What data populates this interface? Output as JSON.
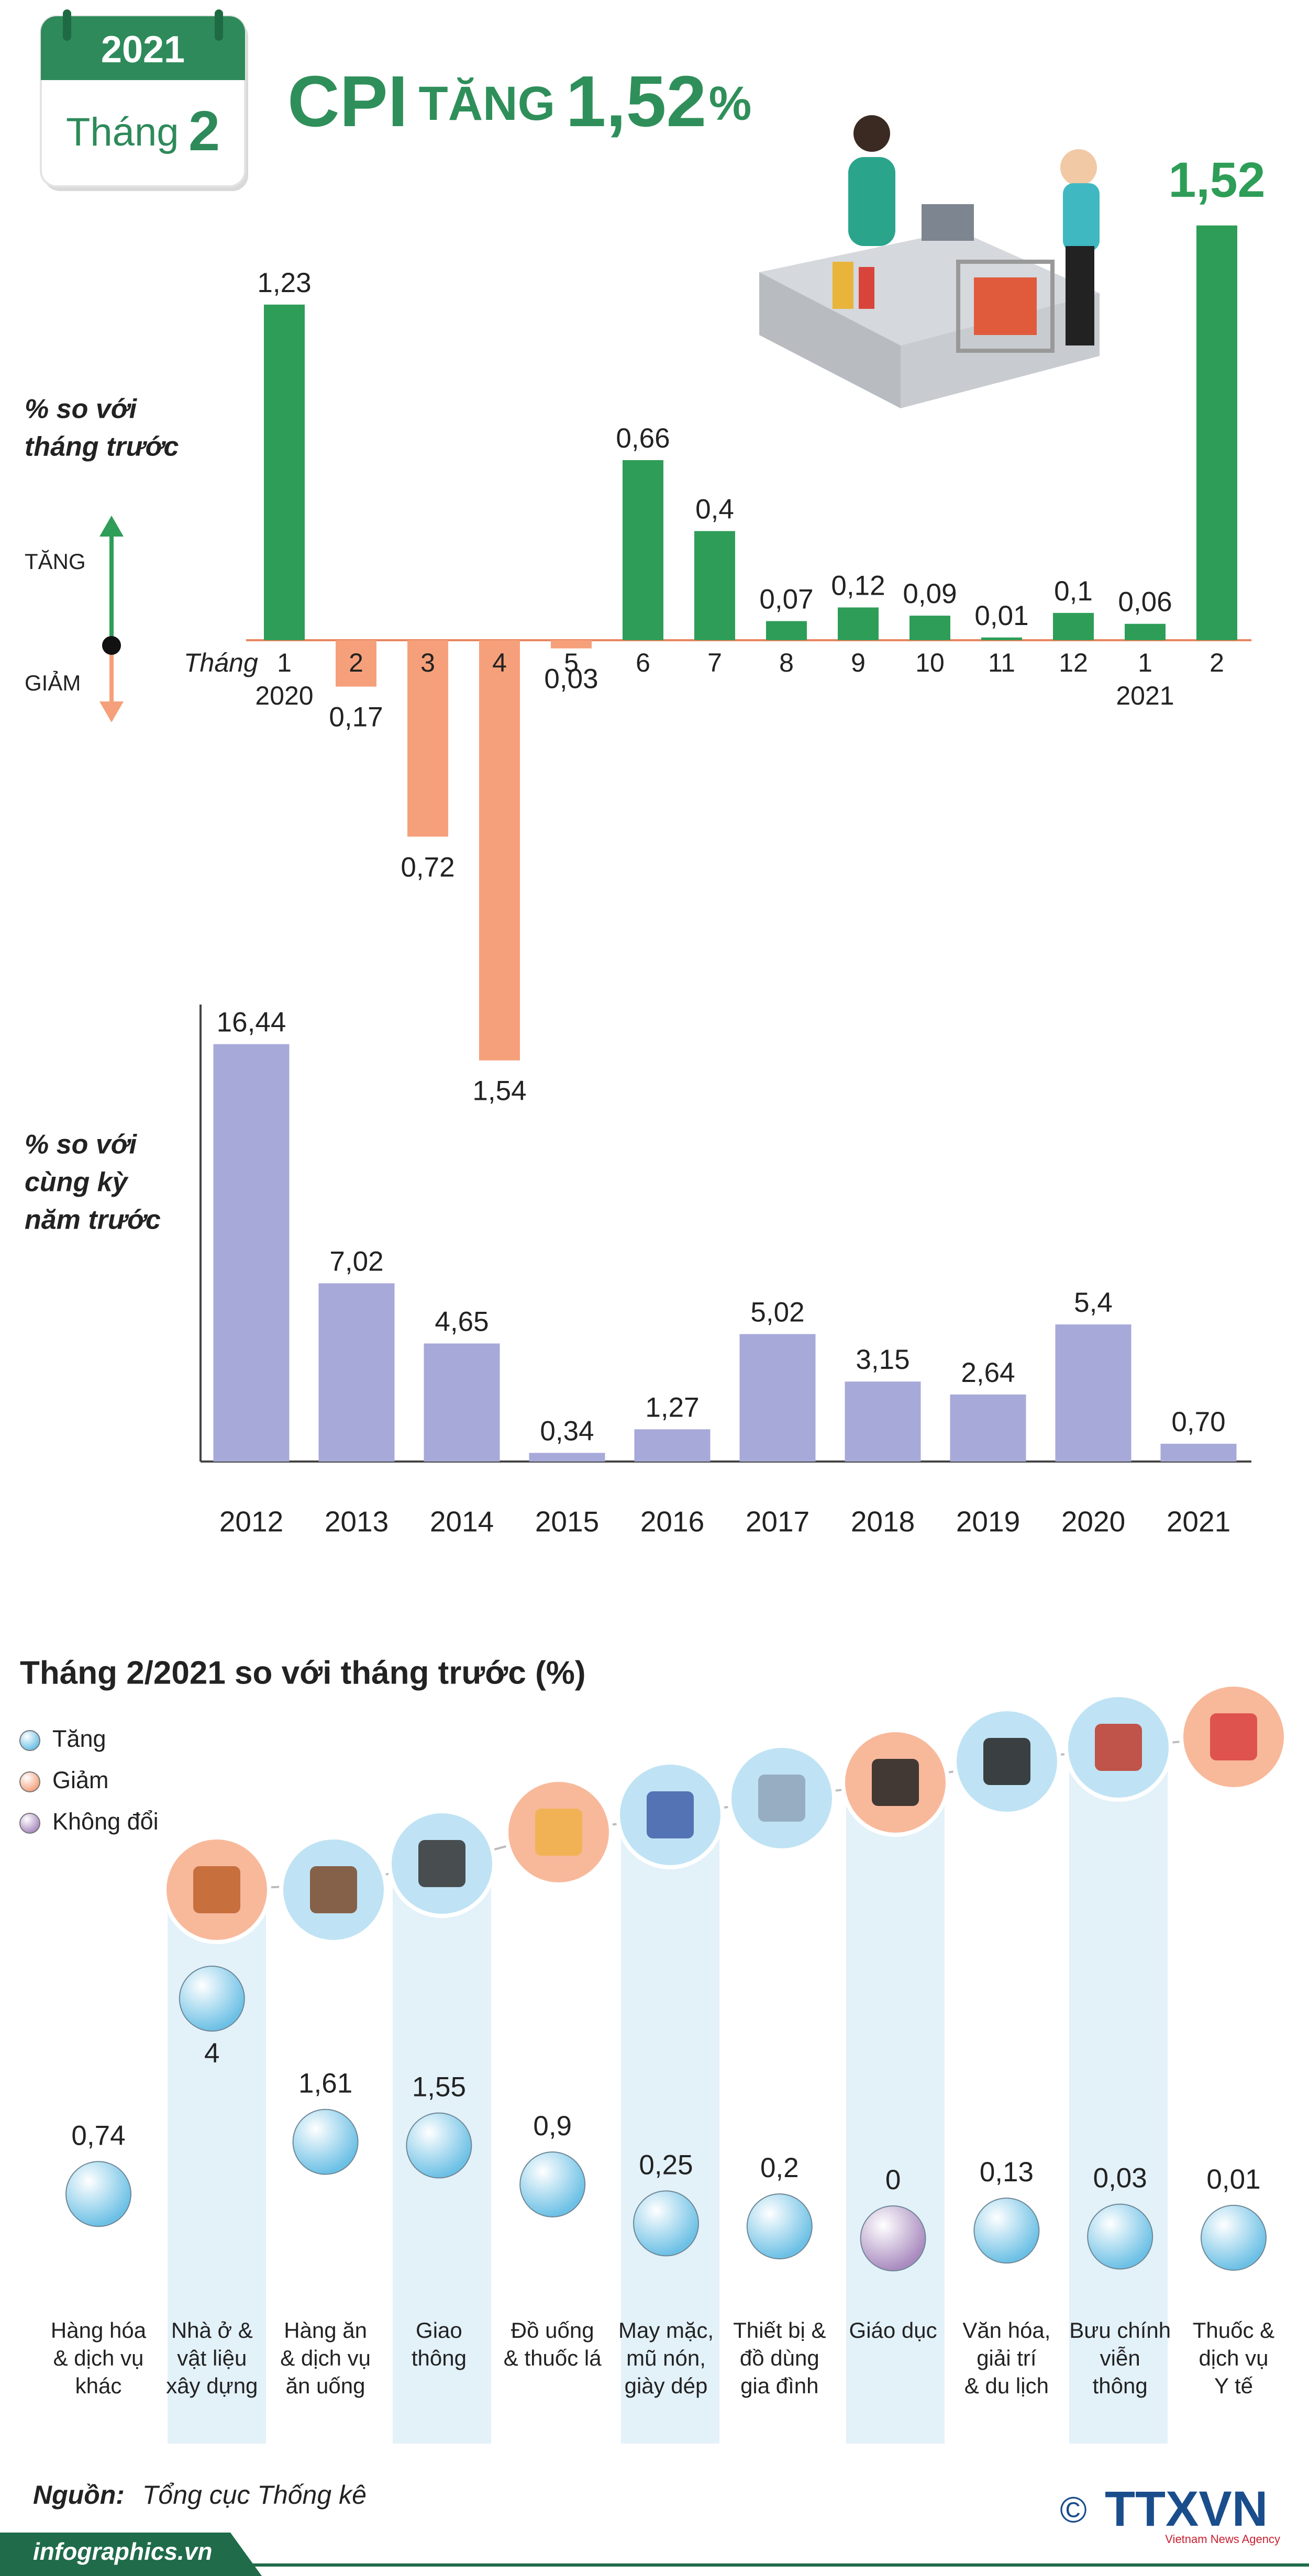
{
  "header": {
    "year": "2021",
    "month_label": "Tháng",
    "month": "2",
    "title": [
      "CPI",
      "TĂNG",
      "1,52",
      "%"
    ]
  },
  "chart_data": [
    {
      "type": "bar",
      "y_label": [
        "% so với",
        "tháng trước"
      ],
      "up_label": "TĂNG",
      "down_label": "GIẢM",
      "x_label": "Tháng",
      "categories": [
        "1",
        "2",
        "3",
        "4",
        "5",
        "6",
        "7",
        "8",
        "9",
        "10",
        "11",
        "12",
        "1",
        "2"
      ],
      "years": [
        "2020",
        null,
        null,
        null,
        null,
        null,
        null,
        null,
        null,
        null,
        null,
        null,
        "2021",
        null
      ],
      "values": [
        1.23,
        -0.17,
        -0.72,
        -1.54,
        -0.03,
        0.66,
        0.4,
        0.07,
        0.12,
        0.09,
        0.01,
        0.1,
        0.06,
        1.52
      ],
      "value_labels": [
        "1,23",
        "0,17",
        "0,72",
        "1,54",
        "0,03",
        "0,66",
        "0,4",
        "0,07",
        "0,12",
        "0,09",
        "0,01",
        "0,1",
        "0,06",
        "1,52"
      ],
      "colors": {
        "up": "#2e9d57",
        "down": "#f5a07a"
      },
      "ylim": [
        -1.6,
        1.6
      ]
    },
    {
      "type": "bar",
      "y_label": [
        "% so với",
        "cùng kỳ",
        "năm trước"
      ],
      "categories": [
        "2012",
        "2013",
        "2014",
        "2015",
        "2016",
        "2017",
        "2018",
        "2019",
        "2020",
        "2021"
      ],
      "values": [
        16.44,
        7.02,
        4.65,
        0.34,
        1.27,
        5.02,
        3.15,
        2.64,
        5.4,
        0.7
      ],
      "value_labels": [
        "16,44",
        "7,02",
        "4,65",
        "0,34",
        "1,27",
        "5,02",
        "3,15",
        "2,64",
        "5,4",
        "0,70"
      ],
      "color": "#a7a9d9",
      "ylim": [
        0,
        18
      ]
    },
    {
      "type": "bubble",
      "title": "Tháng 2/2021 so với tháng trước (%)",
      "legend": [
        {
          "name": "Tăng",
          "color": "#6cc0e5"
        },
        {
          "name": "Giảm",
          "color": "#f4a27e"
        },
        {
          "name": "Không đổi",
          "color": "#a98bbf"
        }
      ],
      "categories": [
        [
          "Hàng hóa",
          "& dịch vụ",
          "khác"
        ],
        [
          "Nhà ở &",
          "vật liệu",
          "xây dựng"
        ],
        [
          "Hàng ăn",
          "& dịch vụ",
          "ăn uống"
        ],
        [
          "Giao",
          "thông"
        ],
        [
          "Đồ uống",
          "& thuốc lá"
        ],
        [
          "May mặc,",
          "mũ nón,",
          "giày dép"
        ],
        [
          "Thiết bị &",
          "đồ dùng",
          "gia đình"
        ],
        [
          "Giáo dục"
        ],
        [
          "Văn hóa,",
          "giải trí",
          "& du lịch"
        ],
        [
          "Bưu chính",
          "viễn",
          "thông"
        ],
        [
          "Thuốc &",
          "dịch vụ",
          "Y tế"
        ]
      ],
      "values": [
        0.74,
        4,
        1.61,
        1.55,
        0.9,
        0.25,
        0.2,
        0,
        0.13,
        0.03,
        0.01
      ],
      "value_labels": [
        "0,74",
        "4",
        "1,61",
        "1,55",
        "0,9",
        "0,25",
        "0,2",
        "0",
        "0,13",
        "0,03",
        "0,01"
      ],
      "point_colors": [
        "#6cc0e5",
        "#6cc0e5",
        "#6cc0e5",
        "#6cc0e5",
        "#6cc0e5",
        "#6cc0e5",
        "#6cc0e5",
        "#a98bbf",
        "#6cc0e5",
        "#6cc0e5",
        "#6cc0e5"
      ],
      "ylim": [
        0,
        4
      ]
    }
  ],
  "source": {
    "label": "Nguồn:",
    "text": "Tổng cục Thống kê"
  },
  "footer": {
    "site": "infographics.vn",
    "copyright": "©",
    "agency": "TTXVN",
    "agency_sub": "Vietnam News Agency"
  }
}
